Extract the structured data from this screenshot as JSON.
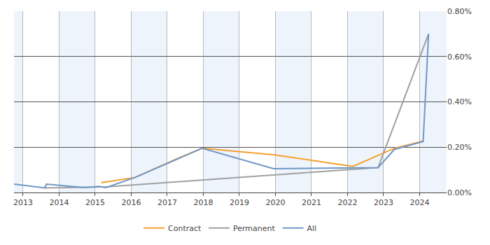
{
  "chart_data": {
    "type": "line",
    "xlim": [
      2012.75,
      2024.75
    ],
    "xticks": [
      2013,
      2014,
      2015,
      2016,
      2017,
      2018,
      2019,
      2020,
      2021,
      2022,
      2023,
      2024
    ],
    "ylim": [
      0,
      0.8
    ],
    "yticks": [
      {
        "value": 0,
        "label": "0.00%"
      },
      {
        "value": 0.2,
        "label": "0.20%"
      },
      {
        "value": 0.4,
        "label": "0.40%"
      },
      {
        "value": 0.6,
        "label": "0.60%"
      },
      {
        "value": 0.8,
        "label": "0.80%"
      }
    ],
    "grid": true,
    "legend": "bottom",
    "series": [
      {
        "name": "Contract",
        "color": "#f5a030",
        "x": [
          2015.17,
          2016.1,
          2017.4,
          2017.97,
          2019.98,
          2022.15,
          2023.3,
          2024.1
        ],
        "values": [
          0.043,
          0.066,
          0.158,
          0.195,
          0.166,
          0.115,
          0.195,
          0.227
        ]
      },
      {
        "name": "Permanent",
        "color": "#a0a0a0",
        "x": [
          2013.6,
          2015.3,
          2022.85,
          2024.25
        ],
        "values": [
          0.02,
          0.025,
          0.11,
          0.7
        ]
      },
      {
        "name": "All",
        "color": "#6f97c6",
        "x": [
          2012.75,
          2013.6,
          2013.65,
          2014.7,
          2015.1,
          2015.3,
          2016.1,
          2017.4,
          2017.97,
          2019.95,
          2022.85,
          2023.3,
          2024.1,
          2024.25
        ],
        "values": [
          0.037,
          0.02,
          0.037,
          0.022,
          0.027,
          0.022,
          0.066,
          0.155,
          0.195,
          0.105,
          0.11,
          0.19,
          0.225,
          0.7
        ]
      }
    ]
  }
}
